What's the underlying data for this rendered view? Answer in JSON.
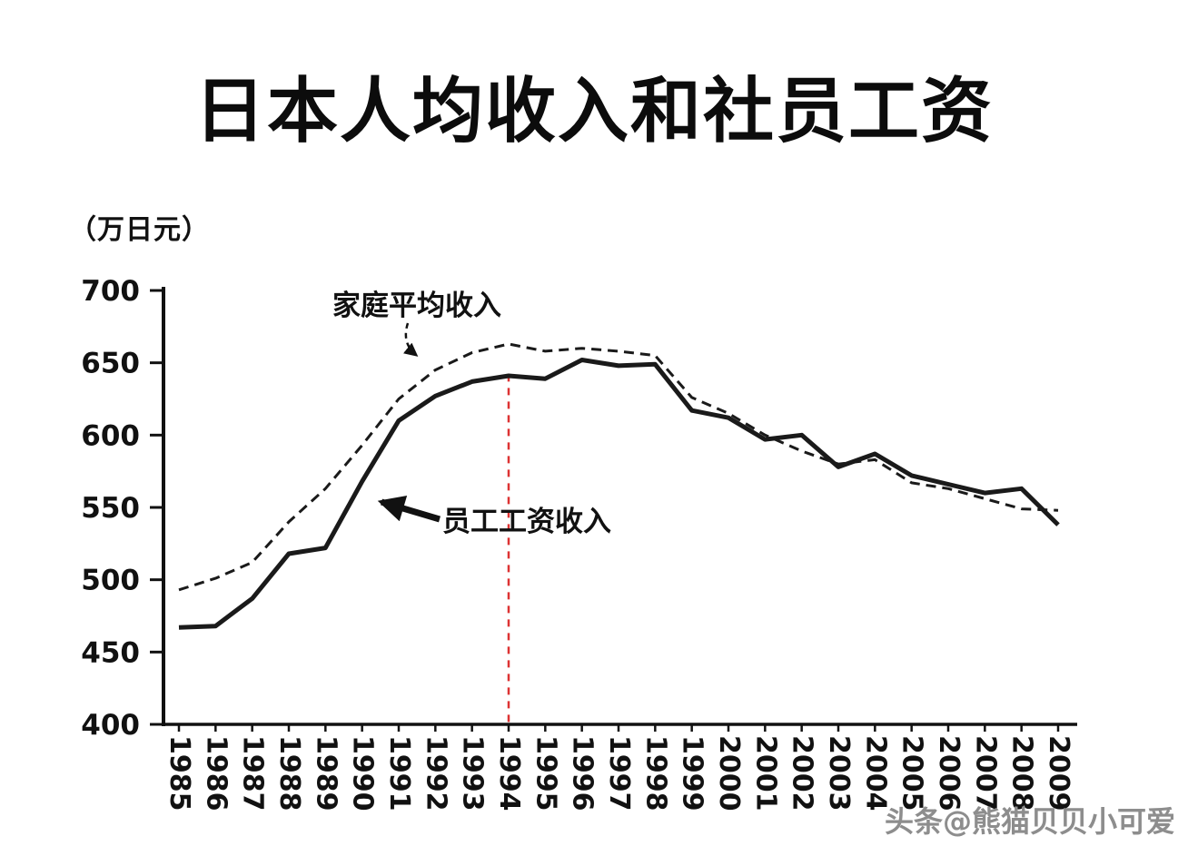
{
  "page": {
    "title": "日本人均收入和社员工资",
    "unit_label": "（万日元）",
    "watermark": "头条@熊猫贝贝小可爱"
  },
  "chart_data": {
    "type": "line",
    "title": "日本人均收入和社员工资",
    "xlabel": "",
    "ylabel": "（万日元）",
    "ylim": [
      400,
      700
    ],
    "yticks": [
      400,
      450,
      500,
      550,
      600,
      650,
      700
    ],
    "grid": false,
    "legend_position": "inline-annotations",
    "axis_color": "#111111",
    "x": [
      1985,
      1986,
      1987,
      1988,
      1989,
      1990,
      1991,
      1992,
      1993,
      1994,
      1995,
      1996,
      1997,
      1998,
      1999,
      2000,
      2001,
      2002,
      2003,
      2004,
      2005,
      2006,
      2007,
      2008,
      2009
    ],
    "series": [
      {
        "name": "家庭平均收入",
        "style": "dashed",
        "color": "#1a1a1a",
        "values": [
          493,
          501,
          512,
          540,
          563,
          593,
          625,
          645,
          657,
          663,
          658,
          660,
          658,
          655,
          626,
          615,
          600,
          589,
          580,
          583,
          567,
          563,
          556,
          549,
          548
        ]
      },
      {
        "name": "员工工资收入",
        "style": "solid",
        "color": "#1a1a1a",
        "values": [
          467,
          468,
          487,
          518,
          522,
          568,
          610,
          627,
          637,
          641,
          639,
          652,
          648,
          649,
          617,
          612,
          597,
          600,
          578,
          587,
          572,
          566,
          560,
          563,
          538
        ]
      }
    ],
    "reference_line": {
      "type": "vertical",
      "x": 1994,
      "from": 400,
      "to": 642,
      "color": "#dd3333",
      "style": "dashed"
    },
    "annotations": [
      {
        "text": "家庭平均收入"
      },
      {
        "text": "员工工资收入"
      }
    ]
  }
}
